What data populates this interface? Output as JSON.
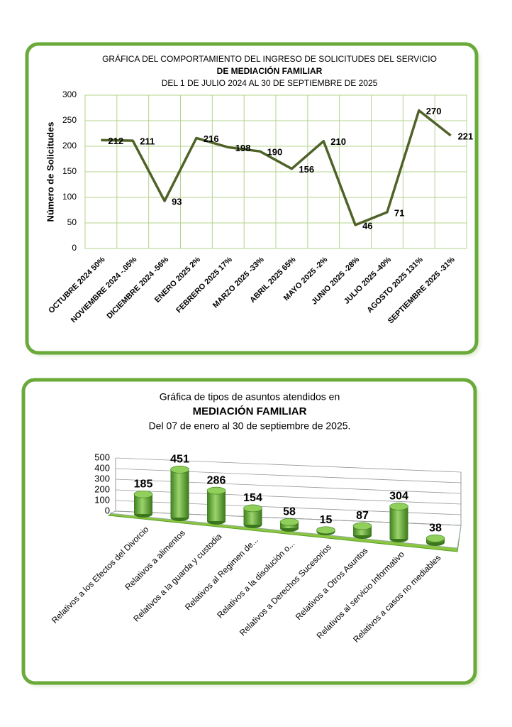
{
  "chart_data": [
    {
      "type": "line",
      "title": "GRÁFICA DEL COMPORTAMIENTO DEL  INGRESO DE SOLICITUDES DEL SERVICIO",
      "subtitle": "DE MEDIACIÓN FAMILIAR",
      "date_range": "DEL  1  DE  JULIO  2024 AL  30 DE SEPTIEMBRE DE 2025",
      "y_label": "Número de Solicitudes",
      "categories": [
        "OCTUBRE 2024   50%",
        "NOVIEMBRE 2024   -.05%",
        "DICIEMBRE 2024   -56%",
        "ENERO  2025  2%",
        "FEBRERO 2025   17%",
        "MARZO 2025   -33%",
        "ABRIL 2025 65%",
        "MAYO   2025   -2%",
        "JUNIO  2025  -28%",
        "JULIO 2025 -40%",
        "AGOSTO   2025  131%",
        "SEPTIEMBRE  2025  -31%"
      ],
      "values": [
        212,
        211,
        93,
        216,
        198,
        190,
        156,
        210,
        46,
        71,
        270,
        221
      ],
      "color": "#4f6228",
      "ylim": [
        0,
        300
      ],
      "yticks": [
        0,
        50,
        100,
        150,
        200,
        250,
        300
      ],
      "grid": true
    },
    {
      "type": "bar",
      "title": "Gráfica de tipos de asuntos atendidos en",
      "subtitle": "MEDIACIÓN FAMILIAR",
      "date_range": "Del  07 de enero al  30 de septiembre de 2025.",
      "categories": [
        "Relativos a los Efectos del Divorcio",
        "Relativos a alimentos",
        "Relativos a la guarda y custodia",
        "Relativos al Regimen de...",
        "Relativos a la disolución o...",
        "Relativos a Derechos Sucesorios",
        "Relativos a Otros Asuntos",
        "Relativos al servicio Informativo",
        "Relativos a casos no mediables"
      ],
      "values": [
        185,
        451,
        286,
        154,
        58,
        15,
        87,
        304,
        38
      ],
      "color": "#5aa02c",
      "ylim": [
        0,
        500
      ],
      "yticks": [
        0,
        100,
        200,
        300,
        400,
        500
      ],
      "grid": true
    }
  ]
}
